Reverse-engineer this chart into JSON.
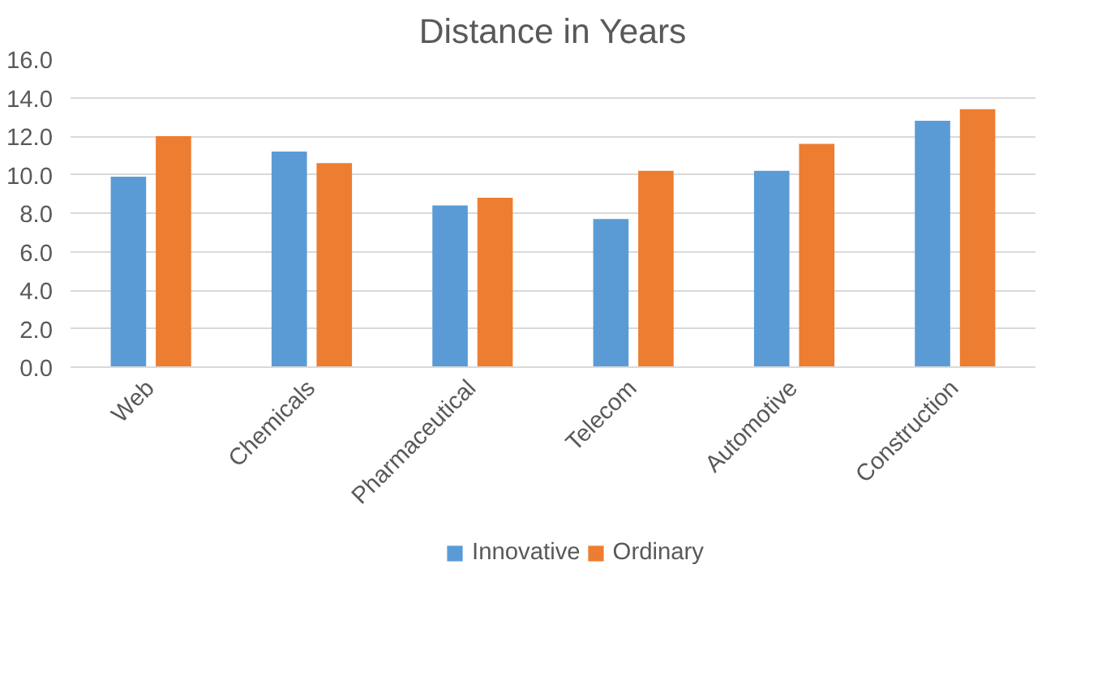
{
  "chart_data": {
    "type": "bar",
    "title": "Distance in Years",
    "categories": [
      "Web",
      "Chemicals",
      "Pharmaceutical",
      "Telecom",
      "Automotive",
      "Construction"
    ],
    "series": [
      {
        "name": "Innovative",
        "color": "#5b9bd5",
        "values": [
          9.9,
          11.2,
          8.4,
          7.7,
          10.2,
          12.8
        ]
      },
      {
        "name": "Ordinary",
        "color": "#ed7d31",
        "values": [
          12.0,
          10.6,
          8.8,
          10.2,
          11.6,
          13.4
        ]
      }
    ],
    "ylim": [
      0,
      16
    ],
    "yticks": [
      {
        "value": 0,
        "label": "0.0"
      },
      {
        "value": 2,
        "label": "2.0"
      },
      {
        "value": 4,
        "label": "4.0"
      },
      {
        "value": 6,
        "label": "6.0"
      },
      {
        "value": 8,
        "label": "8.0"
      },
      {
        "value": 10,
        "label": "10.0"
      },
      {
        "value": 12,
        "label": "12.0"
      },
      {
        "value": 14,
        "label": "14.0"
      },
      {
        "value": 16,
        "label": "16.0"
      }
    ],
    "grid": "y",
    "legend": "bottom"
  }
}
